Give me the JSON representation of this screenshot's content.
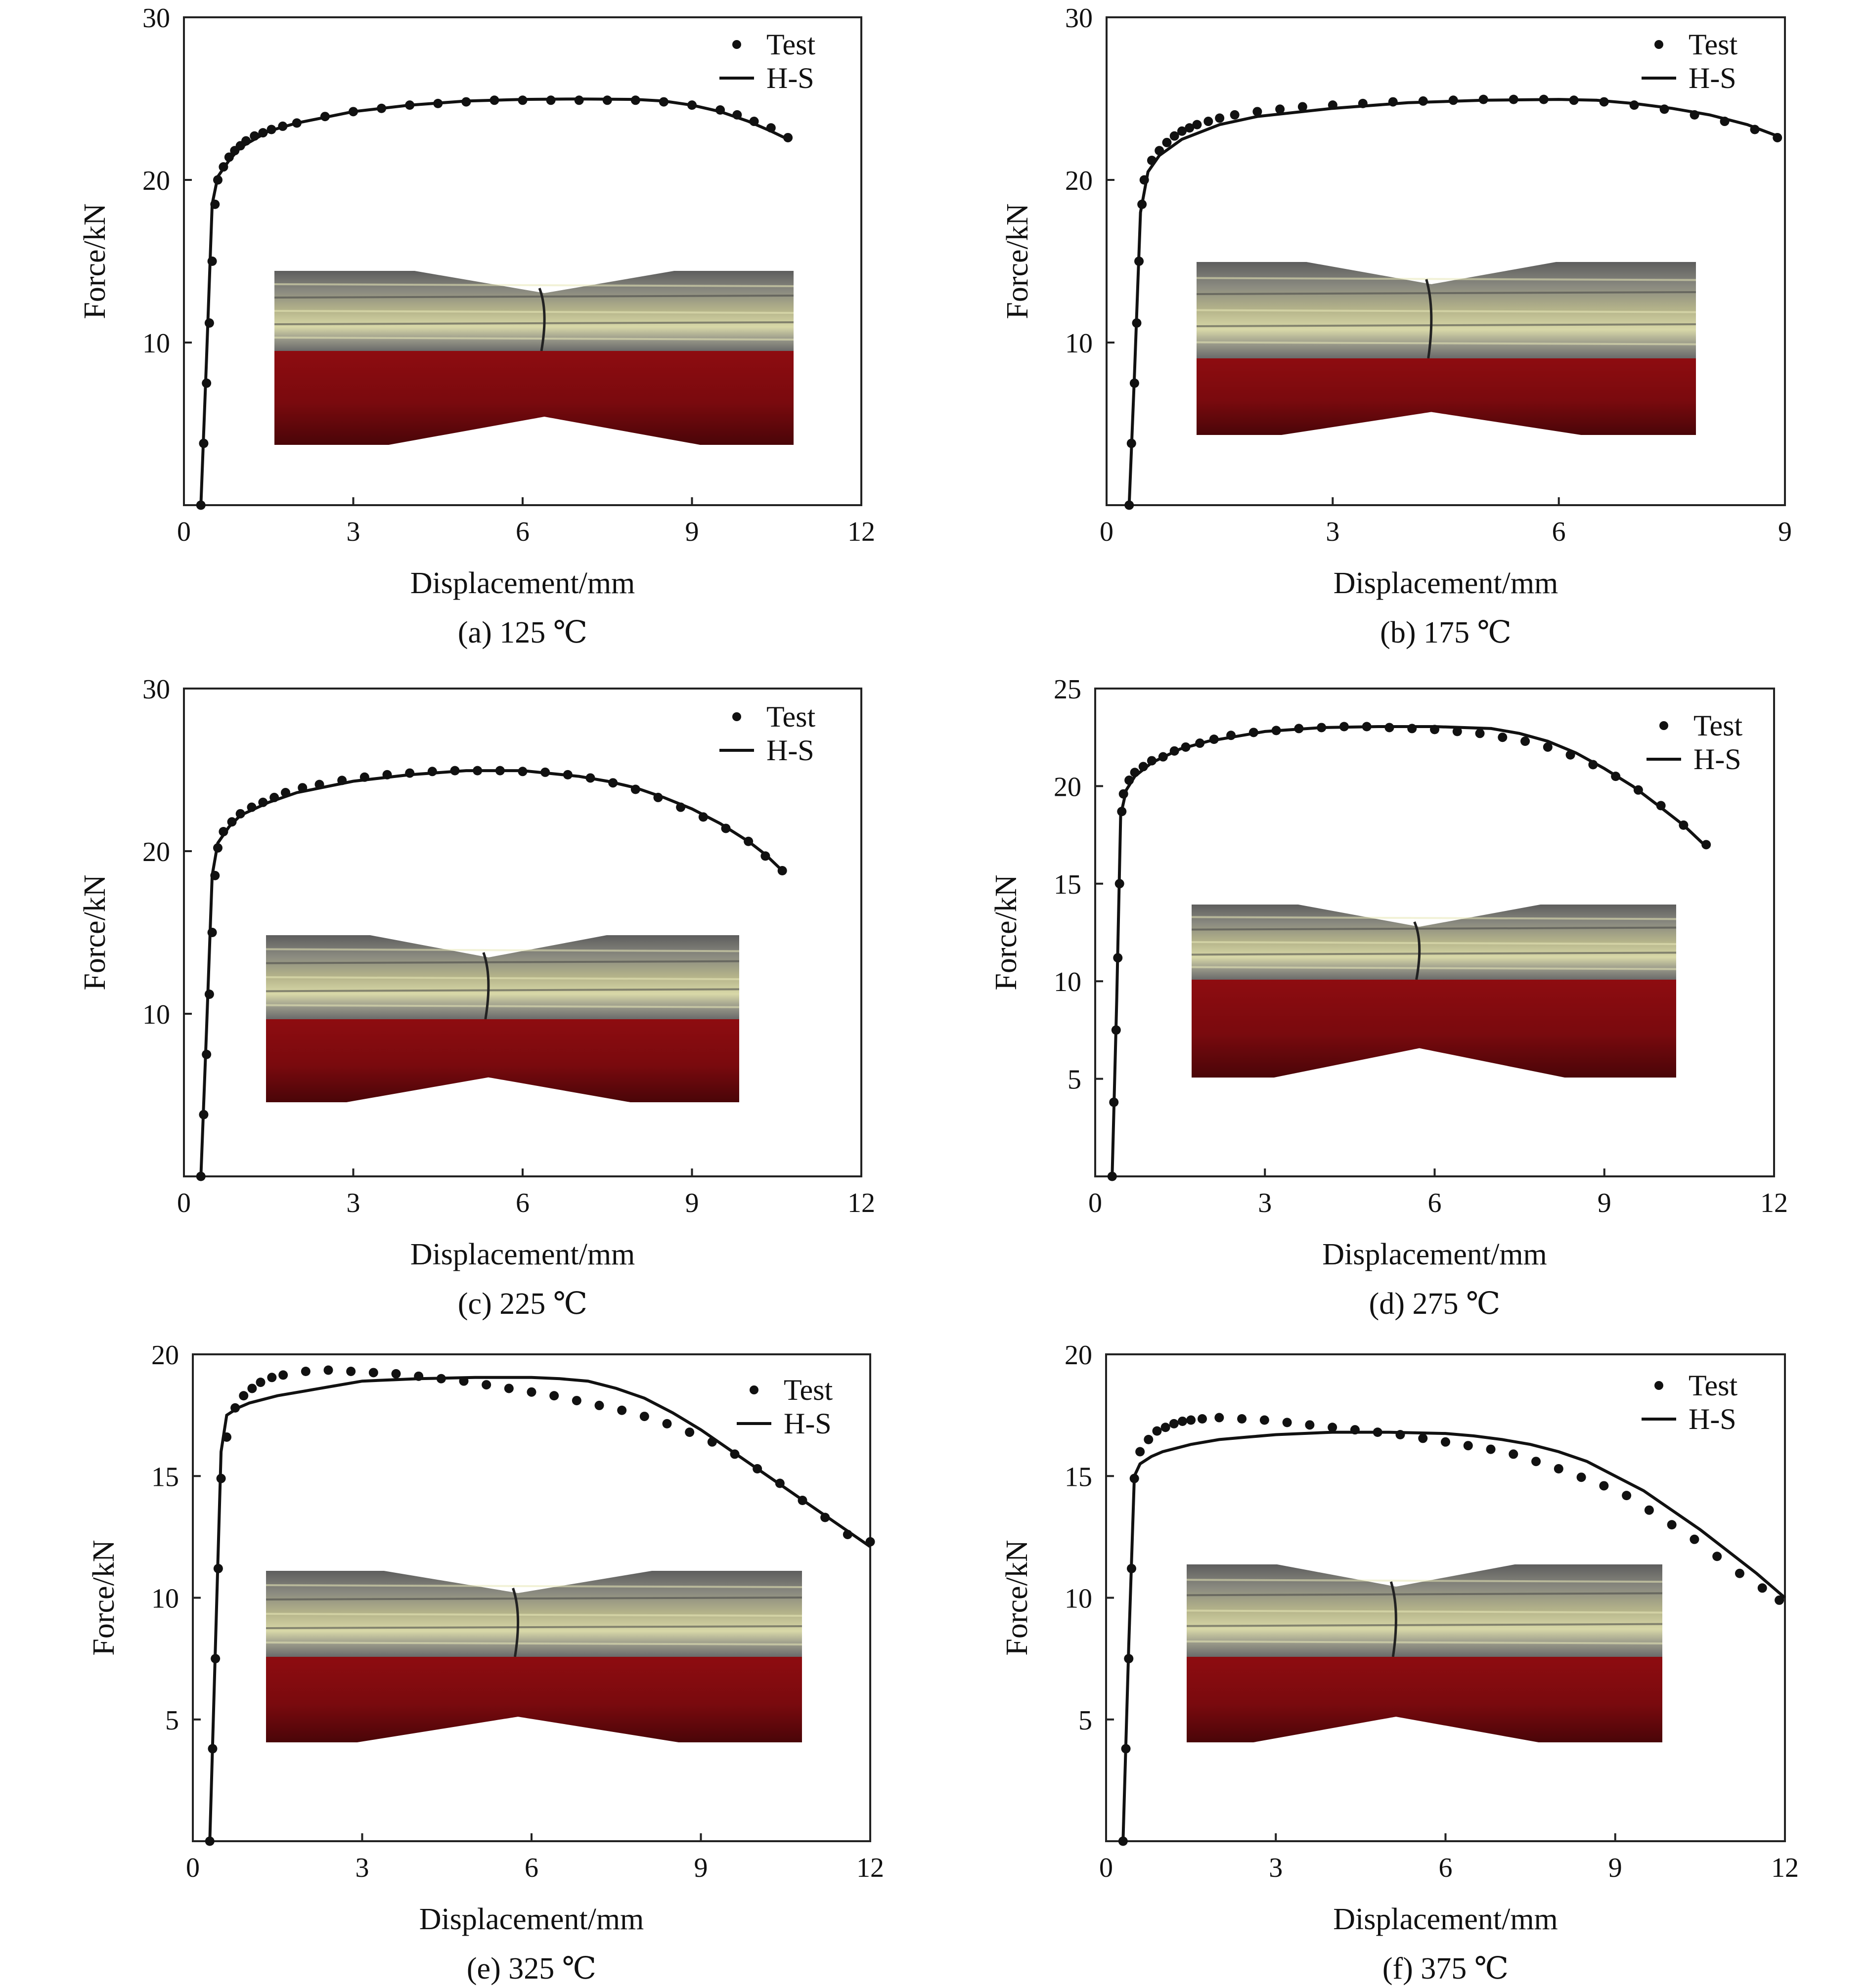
{
  "chart_data": [
    {
      "type": "line",
      "caption": "(a) 125 ℃",
      "xlabel": "Displacement/mm",
      "ylabel": "Force/kN",
      "xlim": [
        0,
        12
      ],
      "ylim": [
        0,
        30
      ],
      "xticks": [
        "0",
        "3",
        "6",
        "9",
        "12"
      ],
      "yticks": [
        "10",
        "20",
        "30"
      ],
      "grid": false,
      "legend_position": "top-right",
      "inset": "specimen photo with necking over simulated red specimen",
      "series": [
        {
          "name": "Test",
          "style": "points",
          "x": [
            0.3,
            0.35,
            0.4,
            0.45,
            0.5,
            0.55,
            0.6,
            0.7,
            0.8,
            0.9,
            1.0,
            1.1,
            1.25,
            1.4,
            1.55,
            1.75,
            2.0,
            2.5,
            3.0,
            3.5,
            4.0,
            4.5,
            5.0,
            5.5,
            6.0,
            6.5,
            7.0,
            7.5,
            8.0,
            8.5,
            9.0,
            9.5,
            9.8,
            10.1,
            10.4,
            10.7
          ],
          "y": [
            0,
            3.8,
            7.5,
            11.2,
            15,
            18.5,
            20,
            20.8,
            21.4,
            21.8,
            22.1,
            22.4,
            22.7,
            22.9,
            23.1,
            23.3,
            23.5,
            23.9,
            24.2,
            24.4,
            24.6,
            24.7,
            24.8,
            24.9,
            24.9,
            24.9,
            24.9,
            24.9,
            24.9,
            24.8,
            24.6,
            24.3,
            24.0,
            23.6,
            23.2,
            22.6
          ]
        },
        {
          "name": "H-S",
          "style": "line",
          "x": [
            0.3,
            0.4,
            0.5,
            0.6,
            0.8,
            1.0,
            1.5,
            2.0,
            3.0,
            4.0,
            5.0,
            6.0,
            7.0,
            8.0,
            8.5,
            9.0,
            9.5,
            10.0,
            10.4,
            10.7
          ],
          "y": [
            0,
            9,
            18.5,
            20.2,
            21.2,
            22.0,
            23.0,
            23.5,
            24.2,
            24.6,
            24.85,
            24.95,
            24.98,
            24.95,
            24.85,
            24.6,
            24.2,
            23.6,
            23.0,
            22.5
          ]
        }
      ]
    },
    {
      "type": "line",
      "caption": "(b) 175 ℃",
      "xlabel": "Displacement/mm",
      "ylabel": "Force/kN",
      "xlim": [
        0,
        9
      ],
      "ylim": [
        0,
        30
      ],
      "xticks": [
        "0",
        "3",
        "6",
        "9"
      ],
      "yticks": [
        "10",
        "20",
        "30"
      ],
      "grid": false,
      "legend_position": "top-right",
      "inset": "specimen photo with necking over simulated red specimen",
      "series": [
        {
          "name": "Test",
          "style": "points",
          "x": [
            0.3,
            0.33,
            0.37,
            0.4,
            0.43,
            0.47,
            0.5,
            0.6,
            0.7,
            0.8,
            0.9,
            1.0,
            1.1,
            1.2,
            1.35,
            1.5,
            1.7,
            2.0,
            2.3,
            2.6,
            3.0,
            3.4,
            3.8,
            4.2,
            4.6,
            5.0,
            5.4,
            5.8,
            6.2,
            6.6,
            7.0,
            7.4,
            7.8,
            8.2,
            8.6,
            8.9
          ],
          "y": [
            0,
            3.8,
            7.5,
            11.2,
            15,
            18.5,
            20,
            21.2,
            21.8,
            22.3,
            22.7,
            23.0,
            23.2,
            23.4,
            23.6,
            23.8,
            24.0,
            24.2,
            24.35,
            24.5,
            24.6,
            24.7,
            24.8,
            24.85,
            24.9,
            24.95,
            24.95,
            24.95,
            24.9,
            24.8,
            24.6,
            24.35,
            24.0,
            23.6,
            23.1,
            22.6
          ]
        },
        {
          "name": "H-S",
          "style": "line",
          "x": [
            0.3,
            0.37,
            0.45,
            0.55,
            0.7,
            1.0,
            1.5,
            2.0,
            3.0,
            4.0,
            5.0,
            6.0,
            6.5,
            7.0,
            7.5,
            8.0,
            8.5,
            8.9
          ],
          "y": [
            0,
            8,
            18,
            20.5,
            21.5,
            22.5,
            23.4,
            23.9,
            24.4,
            24.75,
            24.9,
            24.95,
            24.9,
            24.7,
            24.4,
            24.0,
            23.4,
            22.7
          ]
        }
      ]
    },
    {
      "type": "line",
      "caption": "(c) 225 ℃",
      "xlabel": "Displacement/mm",
      "ylabel": "Force/kN",
      "xlim": [
        0,
        12
      ],
      "ylim": [
        0,
        30
      ],
      "xticks": [
        "0",
        "3",
        "6",
        "9",
        "12"
      ],
      "yticks": [
        "10",
        "20",
        "30"
      ],
      "grid": false,
      "legend_position": "top-right",
      "inset": "specimen photo with necking over simulated red specimen",
      "series": [
        {
          "name": "Test",
          "style": "points",
          "x": [
            0.3,
            0.35,
            0.4,
            0.45,
            0.5,
            0.55,
            0.6,
            0.7,
            0.85,
            1.0,
            1.2,
            1.4,
            1.6,
            1.8,
            2.1,
            2.4,
            2.8,
            3.2,
            3.6,
            4.0,
            4.4,
            4.8,
            5.2,
            5.6,
            6.0,
            6.4,
            6.8,
            7.2,
            7.6,
            8.0,
            8.4,
            8.8,
            9.2,
            9.6,
            10.0,
            10.3,
            10.6
          ],
          "y": [
            0,
            3.8,
            7.5,
            11.2,
            15,
            18.5,
            20.2,
            21.2,
            21.8,
            22.3,
            22.7,
            23.0,
            23.3,
            23.6,
            23.9,
            24.1,
            24.35,
            24.55,
            24.7,
            24.8,
            24.9,
            24.95,
            24.95,
            24.95,
            24.9,
            24.85,
            24.7,
            24.5,
            24.2,
            23.8,
            23.3,
            22.7,
            22.1,
            21.4,
            20.6,
            19.7,
            18.8
          ]
        },
        {
          "name": "H-S",
          "style": "line",
          "x": [
            0.3,
            0.4,
            0.5,
            0.6,
            0.8,
            1.0,
            1.5,
            2.0,
            3.0,
            4.0,
            5.0,
            6.0,
            7.0,
            7.5,
            8.0,
            8.5,
            9.0,
            9.5,
            10.0,
            10.3,
            10.6
          ],
          "y": [
            0,
            9,
            18.5,
            20.5,
            21.5,
            22.2,
            23.0,
            23.6,
            24.3,
            24.7,
            24.95,
            24.95,
            24.6,
            24.3,
            23.9,
            23.3,
            22.6,
            21.7,
            20.6,
            19.8,
            18.8
          ]
        }
      ]
    },
    {
      "type": "line",
      "caption": "(d) 275 ℃",
      "xlabel": "Displacement/mm",
      "ylabel": "Force/kN",
      "xlim": [
        0,
        12
      ],
      "ylim": [
        0,
        25
      ],
      "xticks": [
        "0",
        "3",
        "6",
        "9",
        "12"
      ],
      "yticks": [
        "5",
        "10",
        "15",
        "20",
        "25"
      ],
      "grid": false,
      "legend_position": "top-right",
      "inset": "specimen photo with necking over simulated red specimen",
      "series": [
        {
          "name": "Test",
          "style": "points",
          "x": [
            0.3,
            0.33,
            0.37,
            0.4,
            0.43,
            0.47,
            0.5,
            0.6,
            0.7,
            0.85,
            1.0,
            1.2,
            1.4,
            1.6,
            1.85,
            2.1,
            2.4,
            2.8,
            3.2,
            3.6,
            4.0,
            4.4,
            4.8,
            5.2,
            5.6,
            6.0,
            6.4,
            6.8,
            7.2,
            7.6,
            8.0,
            8.4,
            8.8,
            9.2,
            9.6,
            10.0,
            10.4,
            10.8
          ],
          "y": [
            0,
            3.8,
            7.5,
            11.2,
            15,
            18.7,
            19.6,
            20.3,
            20.7,
            21.0,
            21.3,
            21.5,
            21.8,
            22.0,
            22.2,
            22.4,
            22.6,
            22.75,
            22.85,
            22.95,
            23.0,
            23.05,
            23.05,
            23.0,
            22.95,
            22.9,
            22.8,
            22.7,
            22.5,
            22.3,
            22.0,
            21.6,
            21.1,
            20.5,
            19.8,
            19.0,
            18.0,
            17.0
          ]
        },
        {
          "name": "H-S",
          "style": "line",
          "x": [
            0.3,
            0.38,
            0.45,
            0.55,
            0.7,
            1.0,
            1.5,
            2.0,
            3.0,
            4.0,
            5.0,
            6.0,
            7.0,
            7.5,
            8.0,
            8.5,
            9.0,
            9.5,
            10.0,
            10.4,
            10.8
          ],
          "y": [
            0,
            9,
            18.5,
            19.8,
            20.5,
            21.2,
            21.9,
            22.3,
            22.8,
            23.0,
            23.05,
            23.05,
            22.95,
            22.7,
            22.3,
            21.7,
            20.9,
            20.0,
            18.9,
            18.0,
            16.9
          ]
        }
      ]
    },
    {
      "type": "line",
      "caption": "(e) 325 ℃",
      "xlabel": "Displacement/mm",
      "ylabel": "Force/kN",
      "xlim": [
        0,
        12
      ],
      "ylim": [
        0,
        20
      ],
      "xticks": [
        "0",
        "3",
        "6",
        "9",
        "12"
      ],
      "yticks": [
        "5",
        "10",
        "15",
        "20"
      ],
      "grid": false,
      "legend_position": "top-right",
      "inset": "specimen photo with necking over simulated red specimen",
      "series": [
        {
          "name": "Test",
          "style": "points",
          "x": [
            0.3,
            0.35,
            0.4,
            0.45,
            0.5,
            0.6,
            0.75,
            0.9,
            1.05,
            1.2,
            1.4,
            1.6,
            2.0,
            2.4,
            2.8,
            3.2,
            3.6,
            4.0,
            4.4,
            4.8,
            5.2,
            5.6,
            6.0,
            6.4,
            6.8,
            7.2,
            7.6,
            8.0,
            8.4,
            8.8,
            9.2,
            9.6,
            10.0,
            10.4,
            10.8,
            11.2,
            11.6,
            12.0
          ],
          "y": [
            0,
            3.8,
            7.5,
            11.2,
            14.9,
            16.6,
            17.8,
            18.3,
            18.6,
            18.85,
            19.05,
            19.15,
            19.3,
            19.35,
            19.3,
            19.25,
            19.2,
            19.1,
            19.0,
            18.9,
            18.75,
            18.6,
            18.45,
            18.3,
            18.1,
            17.9,
            17.7,
            17.45,
            17.15,
            16.8,
            16.4,
            15.9,
            15.3,
            14.7,
            14.0,
            13.3,
            12.6,
            12.3
          ]
        },
        {
          "name": "H-S",
          "style": "line",
          "x": [
            0.3,
            0.4,
            0.5,
            0.6,
            0.8,
            1.0,
            1.5,
            2.0,
            2.5,
            3.0,
            4.0,
            5.0,
            6.0,
            6.5,
            7.0,
            7.5,
            8.0,
            8.5,
            9.0,
            9.5,
            10.0,
            10.5,
            11.0,
            11.5,
            12.0
          ],
          "y": [
            0,
            8,
            16,
            17.5,
            17.8,
            18.0,
            18.3,
            18.5,
            18.7,
            18.9,
            19.0,
            19.05,
            19.05,
            19.0,
            18.9,
            18.6,
            18.2,
            17.6,
            16.9,
            16.1,
            15.3,
            14.5,
            13.7,
            12.9,
            12.1
          ]
        }
      ]
    },
    {
      "type": "line",
      "caption": "(f) 375 ℃",
      "xlabel": "Displacement/mm",
      "ylabel": "Force/kN",
      "xlim": [
        0,
        12
      ],
      "ylim": [
        0,
        20
      ],
      "xticks": [
        "0",
        "3",
        "6",
        "9",
        "12"
      ],
      "yticks": [
        "5",
        "10",
        "15",
        "20"
      ],
      "grid": false,
      "legend_position": "top-right",
      "inset": "specimen photo with necking over simulated red specimen",
      "series": [
        {
          "name": "Test",
          "style": "points",
          "x": [
            0.3,
            0.35,
            0.4,
            0.45,
            0.5,
            0.6,
            0.75,
            0.9,
            1.05,
            1.2,
            1.35,
            1.5,
            1.7,
            2.0,
            2.4,
            2.8,
            3.2,
            3.6,
            4.0,
            4.4,
            4.8,
            5.2,
            5.6,
            6.0,
            6.4,
            6.8,
            7.2,
            7.6,
            8.0,
            8.4,
            8.8,
            9.2,
            9.6,
            10.0,
            10.4,
            10.8,
            11.2,
            11.6,
            11.9
          ],
          "y": [
            0,
            3.8,
            7.5,
            11.2,
            14.9,
            16.0,
            16.5,
            16.85,
            17.0,
            17.15,
            17.25,
            17.3,
            17.35,
            17.4,
            17.35,
            17.3,
            17.2,
            17.1,
            17.0,
            16.9,
            16.8,
            16.7,
            16.55,
            16.4,
            16.25,
            16.1,
            15.9,
            15.6,
            15.3,
            14.95,
            14.6,
            14.2,
            13.6,
            13.0,
            12.4,
            11.7,
            11.0,
            10.4,
            9.9
          ]
        },
        {
          "name": "H-S",
          "style": "line",
          "x": [
            0.3,
            0.4,
            0.5,
            0.6,
            0.8,
            1.0,
            1.5,
            2.0,
            2.5,
            3.0,
            4.0,
            5.0,
            6.0,
            6.5,
            7.0,
            7.5,
            8.0,
            8.5,
            9.0,
            9.5,
            10.0,
            10.5,
            11.0,
            11.5,
            12.0
          ],
          "y": [
            0,
            8,
            15,
            15.5,
            15.8,
            16.0,
            16.3,
            16.5,
            16.6,
            16.7,
            16.8,
            16.8,
            16.75,
            16.65,
            16.5,
            16.3,
            16.0,
            15.6,
            15.0,
            14.4,
            13.6,
            12.8,
            11.9,
            11.0,
            10.0
          ]
        }
      ]
    }
  ]
}
